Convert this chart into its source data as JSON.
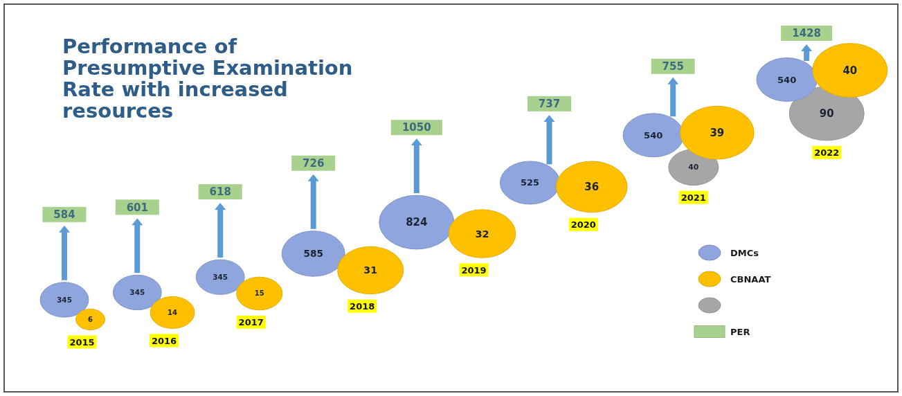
{
  "chart_data": {
    "type": "other",
    "title": "Performance of Presumptive Examination Rate with increased resources",
    "categories": [
      "2015",
      "2016",
      "2017",
      "2018",
      "2019",
      "2020",
      "2021",
      "2022"
    ],
    "series": [
      {
        "name": "DMCs",
        "color": "#8ea5dd",
        "marker": "circle",
        "values": [
          345,
          345,
          345,
          585,
          824,
          525,
          540,
          540
        ]
      },
      {
        "name": "CBNAAT",
        "color": "#ffc000",
        "marker": "circle",
        "values": [
          6,
          14,
          15,
          31,
          32,
          36,
          39,
          40
        ]
      },
      {
        "color": "#a6a6a6",
        "marker": "circle",
        "values": [
          null,
          null,
          null,
          null,
          null,
          null,
          40,
          90
        ]
      },
      {
        "name": "PER",
        "color": "#a9d18e",
        "marker": "square",
        "values": [
          584,
          601,
          618,
          726,
          1050,
          737,
          755,
          1428
        ]
      }
    ],
    "data_labels": true,
    "legend": "right"
  }
}
